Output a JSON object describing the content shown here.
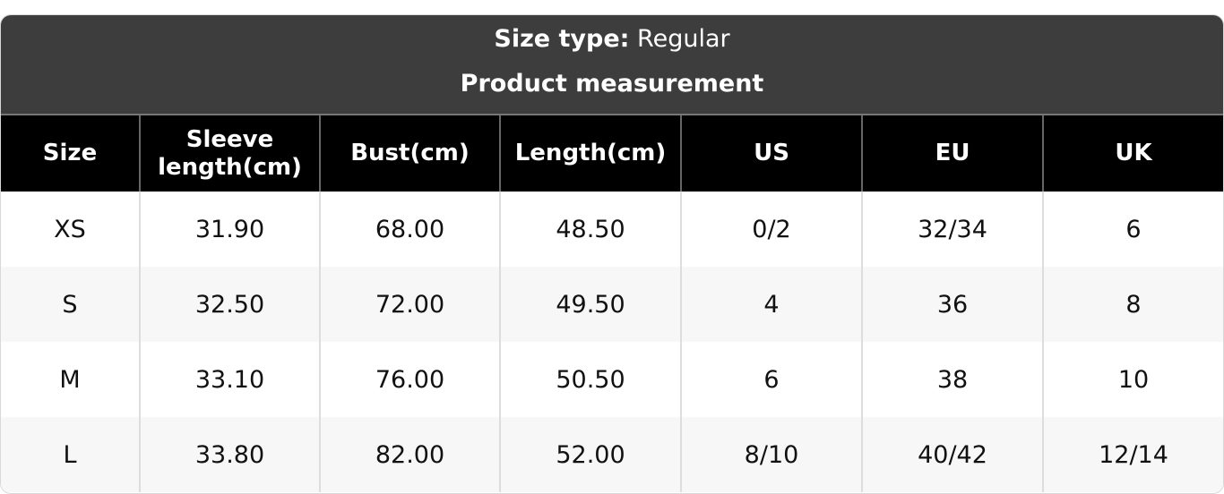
{
  "header": {
    "size_type_label": "Size type:",
    "size_type_value": "Regular",
    "subtitle": "Product measurement"
  },
  "table": {
    "columns": [
      "Size",
      "Sleeve length(cm)",
      "Bust(cm)",
      "Length(cm)",
      "US",
      "EU",
      "UK"
    ],
    "rows": [
      [
        "XS",
        "31.90",
        "68.00",
        "48.50",
        "0/2",
        "32/34",
        "6"
      ],
      [
        "S",
        "32.50",
        "72.00",
        "49.50",
        "4",
        "36",
        "8"
      ],
      [
        "M",
        "33.10",
        "76.00",
        "50.50",
        "6",
        "38",
        "10"
      ],
      [
        "L",
        "33.80",
        "82.00",
        "52.00",
        "8/10",
        "40/42",
        "12/14"
      ]
    ]
  }
}
